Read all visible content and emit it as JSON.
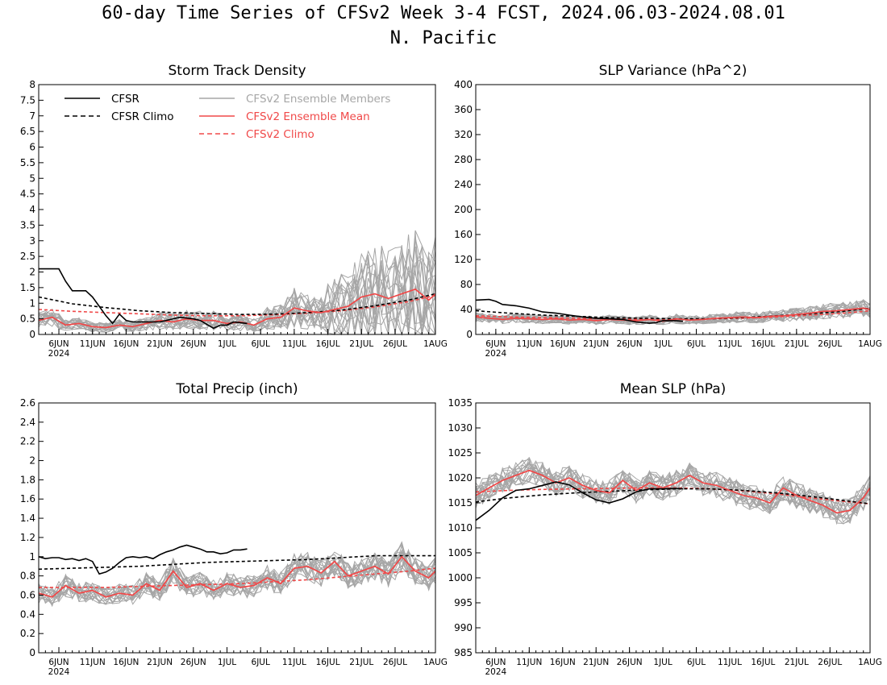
{
  "figure": {
    "title": "60-day Time Series of CFSv2 Week 3-4 FCST, 2024.06.03-2024.08.01",
    "subtitle": "N. Pacific"
  },
  "colors": {
    "cfsr": "#000000",
    "cfsr_climo": "#000000",
    "ensemble_members": "#a6a6a6",
    "ensemble_mean": "#f04848",
    "cfsv2_climo": "#f04848"
  },
  "legend": {
    "placement": "top-left of Storm Track Density panel",
    "items": [
      {
        "label": "CFSR",
        "style": "solid",
        "color": "#000000"
      },
      {
        "label": "CFSR Climo",
        "style": "dashed",
        "color": "#000000"
      },
      {
        "label": "CFSv2 Ensemble Members",
        "style": "solid",
        "color": "#a6a6a6"
      },
      {
        "label": "CFSv2 Ensemble Mean",
        "style": "solid",
        "color": "#f04848"
      },
      {
        "label": "CFSv2 Climo",
        "style": "dashed",
        "color": "#f04848"
      }
    ]
  },
  "x_axis": {
    "ticks": [
      {
        "day": 3,
        "label": "6JUN"
      },
      {
        "day": 8,
        "label": "11JUN"
      },
      {
        "day": 13,
        "label": "16JUN"
      },
      {
        "day": 18,
        "label": "21JUN"
      },
      {
        "day": 23,
        "label": "26JUN"
      },
      {
        "day": 28,
        "label": "1JUL"
      },
      {
        "day": 33,
        "label": "6JUL"
      },
      {
        "day": 38,
        "label": "11JUL"
      },
      {
        "day": 43,
        "label": "16JUL"
      },
      {
        "day": 48,
        "label": "21JUL"
      },
      {
        "day": 53,
        "label": "26JUL"
      },
      {
        "day": 59,
        "label": "1AUG"
      }
    ],
    "year_label": "2024"
  },
  "chart_data": [
    {
      "type": "line",
      "title": "Storm Track Density",
      "xlim": [
        0,
        59
      ],
      "ylim": [
        0,
        8
      ],
      "yticks": [
        0,
        0.5,
        1,
        1.5,
        2,
        2.5,
        3,
        3.5,
        4,
        4.5,
        5,
        5.5,
        6,
        6.5,
        7,
        7.5,
        8
      ],
      "series": [
        {
          "name": "CFSR",
          "x": [
            0,
            3,
            4,
            5,
            7,
            8,
            9,
            10,
            11,
            12,
            13,
            14,
            15,
            18,
            21,
            23,
            24,
            26,
            27,
            28,
            29,
            31
          ],
          "y": [
            2.1,
            2.1,
            1.7,
            1.4,
            1.4,
            1.2,
            0.9,
            0.6,
            0.35,
            0.65,
            0.45,
            0.4,
            0.4,
            0.4,
            0.55,
            0.5,
            0.45,
            0.2,
            0.3,
            0.3,
            0.4,
            0.35
          ]
        },
        {
          "name": "CFSR Climo",
          "x": [
            0,
            5,
            10,
            15,
            20,
            25,
            30,
            35,
            40,
            45,
            50,
            55,
            59
          ],
          "y": [
            1.2,
            0.98,
            0.86,
            0.76,
            0.7,
            0.67,
            0.64,
            0.65,
            0.7,
            0.78,
            0.92,
            1.1,
            1.3
          ]
        },
        {
          "name": "CFSv2 Ensemble Mean",
          "x": [
            0,
            2,
            4,
            6,
            8,
            10,
            12,
            14,
            16,
            18,
            20,
            22,
            24,
            26,
            28,
            30,
            32,
            34,
            36,
            38,
            40,
            42,
            44,
            46,
            48,
            50,
            52,
            54,
            56,
            58,
            59
          ],
          "y": [
            0.45,
            0.55,
            0.3,
            0.35,
            0.25,
            0.22,
            0.3,
            0.25,
            0.35,
            0.45,
            0.4,
            0.5,
            0.45,
            0.45,
            0.35,
            0.4,
            0.3,
            0.5,
            0.55,
            0.85,
            0.75,
            0.7,
            0.8,
            0.9,
            1.2,
            1.3,
            1.15,
            1.3,
            1.45,
            1.1,
            1.3
          ]
        },
        {
          "name": "CFSv2 Climo",
          "x": [
            0,
            5,
            10,
            15,
            20,
            25,
            30,
            35,
            40,
            45,
            50,
            55,
            59
          ],
          "y": [
            0.8,
            0.74,
            0.7,
            0.66,
            0.62,
            0.6,
            0.6,
            0.63,
            0.68,
            0.76,
            0.88,
            1.05,
            1.25
          ]
        }
      ]
    },
    {
      "type": "line",
      "title": "SLP Variance (hPa^2)",
      "xlim": [
        0,
        59
      ],
      "ylim": [
        0,
        400
      ],
      "yticks": [
        0,
        40,
        80,
        120,
        160,
        200,
        240,
        280,
        320,
        360,
        400
      ],
      "series": [
        {
          "name": "CFSR",
          "x": [
            0,
            2,
            3,
            4,
            6,
            8,
            10,
            12,
            14,
            16,
            18,
            20,
            22,
            24,
            26,
            27,
            28,
            30,
            31
          ],
          "y": [
            55,
            56,
            53,
            48,
            46,
            42,
            36,
            34,
            31,
            28,
            26,
            25,
            24,
            20,
            18,
            19,
            22,
            22,
            21
          ]
        },
        {
          "name": "CFSR Climo",
          "x": [
            0,
            5,
            10,
            15,
            20,
            25,
            30,
            35,
            40,
            45,
            50,
            55,
            59
          ],
          "y": [
            38,
            34,
            31,
            29,
            27,
            26,
            25,
            25,
            27,
            30,
            33,
            37,
            42
          ]
        },
        {
          "name": "CFSv2 Ensemble Mean",
          "x": [
            0,
            2,
            4,
            6,
            8,
            10,
            12,
            14,
            16,
            18,
            20,
            22,
            24,
            26,
            28,
            30,
            32,
            34,
            36,
            38,
            40,
            42,
            44,
            46,
            48,
            50,
            52,
            54,
            56,
            58,
            59
          ],
          "y": [
            28,
            26,
            24,
            26,
            25,
            24,
            25,
            23,
            24,
            22,
            24,
            23,
            22,
            24,
            21,
            25,
            23,
            24,
            26,
            27,
            28,
            27,
            29,
            30,
            32,
            34,
            37,
            38,
            40,
            42,
            40
          ]
        },
        {
          "name": "CFSv2 Climo",
          "x": [
            0,
            5,
            10,
            15,
            20,
            25,
            30,
            35,
            40,
            45,
            50,
            55,
            59
          ],
          "y": [
            30,
            28,
            27,
            26,
            25,
            24,
            24,
            25,
            26,
            28,
            31,
            34,
            38
          ]
        }
      ]
    },
    {
      "type": "line",
      "title": "Total Precip (inch)",
      "xlim": [
        0,
        59
      ],
      "ylim": [
        0,
        2.6
      ],
      "yticks": [
        0,
        0.2,
        0.4,
        0.6,
        0.8,
        1,
        1.2,
        1.4,
        1.6,
        1.8,
        2,
        2.2,
        2.4,
        2.6
      ],
      "series": [
        {
          "name": "CFSR",
          "x": [
            0,
            1,
            2,
            3,
            4,
            5,
            6,
            7,
            8,
            9,
            10,
            11,
            12,
            13,
            14,
            15,
            16,
            17,
            18,
            19,
            20,
            21,
            22,
            23,
            24,
            25,
            26,
            27,
            28,
            29,
            30,
            31
          ],
          "y": [
            1.0,
            0.98,
            0.99,
            0.99,
            0.97,
            0.98,
            0.96,
            0.98,
            0.95,
            0.82,
            0.84,
            0.88,
            0.94,
            0.99,
            1.0,
            0.99,
            1.0,
            0.98,
            1.02,
            1.05,
            1.07,
            1.1,
            1.12,
            1.1,
            1.08,
            1.05,
            1.05,
            1.03,
            1.04,
            1.07,
            1.07,
            1.08
          ]
        },
        {
          "name": "CFSR Climo",
          "x": [
            0,
            5,
            10,
            15,
            20,
            25,
            30,
            35,
            40,
            45,
            50,
            55,
            59
          ],
          "y": [
            0.87,
            0.88,
            0.89,
            0.9,
            0.92,
            0.94,
            0.95,
            0.96,
            0.97,
            0.99,
            1.01,
            1.01,
            1.01
          ]
        },
        {
          "name": "CFSv2 Ensemble Mean",
          "x": [
            0,
            2,
            4,
            6,
            8,
            10,
            12,
            14,
            16,
            18,
            20,
            22,
            24,
            26,
            28,
            30,
            32,
            34,
            36,
            38,
            40,
            42,
            44,
            46,
            48,
            50,
            52,
            54,
            56,
            58,
            59
          ],
          "y": [
            0.62,
            0.58,
            0.7,
            0.62,
            0.65,
            0.58,
            0.62,
            0.6,
            0.72,
            0.65,
            0.85,
            0.68,
            0.72,
            0.65,
            0.72,
            0.68,
            0.7,
            0.78,
            0.72,
            0.88,
            0.9,
            0.83,
            0.95,
            0.8,
            0.85,
            0.9,
            0.82,
            1.0,
            0.85,
            0.78,
            0.85
          ]
        },
        {
          "name": "CFSv2 Climo",
          "x": [
            0,
            5,
            10,
            15,
            20,
            25,
            30,
            35,
            40,
            45,
            50,
            55,
            59
          ],
          "y": [
            0.68,
            0.68,
            0.68,
            0.69,
            0.7,
            0.71,
            0.72,
            0.74,
            0.76,
            0.79,
            0.82,
            0.85,
            0.88
          ]
        }
      ]
    },
    {
      "type": "line",
      "title": "Mean SLP (hPa)",
      "xlim": [
        0,
        59
      ],
      "ylim": [
        985,
        1035
      ],
      "yticks": [
        985,
        990,
        995,
        1000,
        1005,
        1010,
        1015,
        1020,
        1025,
        1030,
        1035
      ],
      "series": [
        {
          "name": "CFSR",
          "x": [
            0,
            2,
            4,
            6,
            8,
            10,
            12,
            14,
            16,
            18,
            20,
            22,
            24,
            26,
            28,
            30,
            31
          ],
          "y": [
            1011.5,
            1013.5,
            1016,
            1017.5,
            1017.8,
            1018.5,
            1019.2,
            1018.6,
            1017,
            1015.6,
            1015,
            1015.8,
            1017.2,
            1017.8,
            1017.8,
            1017.9,
            1017.8
          ]
        },
        {
          "name": "CFSR Climo",
          "x": [
            0,
            5,
            10,
            15,
            20,
            25,
            30,
            35,
            40,
            45,
            50,
            55,
            59
          ],
          "y": [
            1015.2,
            1016,
            1016.6,
            1017,
            1017.3,
            1017.6,
            1017.8,
            1017.8,
            1017.5,
            1017,
            1016.3,
            1015.5,
            1014.8
          ]
        },
        {
          "name": "CFSv2 Ensemble Mean",
          "x": [
            0,
            2,
            4,
            6,
            8,
            10,
            12,
            14,
            16,
            18,
            20,
            22,
            24,
            26,
            28,
            30,
            32,
            34,
            36,
            38,
            40,
            42,
            44,
            46,
            48,
            50,
            52,
            54,
            56,
            58,
            59
          ],
          "y": [
            1016.5,
            1018,
            1019.5,
            1020.5,
            1021.5,
            1020.5,
            1019,
            1020,
            1018.5,
            1017.5,
            1017,
            1019.5,
            1017.5,
            1019,
            1018,
            1019,
            1020.5,
            1019,
            1018.5,
            1017.5,
            1016.5,
            1016,
            1015,
            1018,
            1016.5,
            1015.5,
            1014.5,
            1013,
            1013.5,
            1016,
            1018
          ]
        },
        {
          "name": "CFSv2 Climo",
          "x": [
            0,
            5,
            10,
            15,
            20,
            25,
            30,
            35,
            40,
            45,
            50,
            55,
            59
          ],
          "y": [
            1017.2,
            1017.5,
            1017.7,
            1017.8,
            1017.9,
            1018,
            1018,
            1017.8,
            1017.4,
            1016.8,
            1016,
            1015.3,
            1014.8
          ]
        }
      ]
    }
  ]
}
